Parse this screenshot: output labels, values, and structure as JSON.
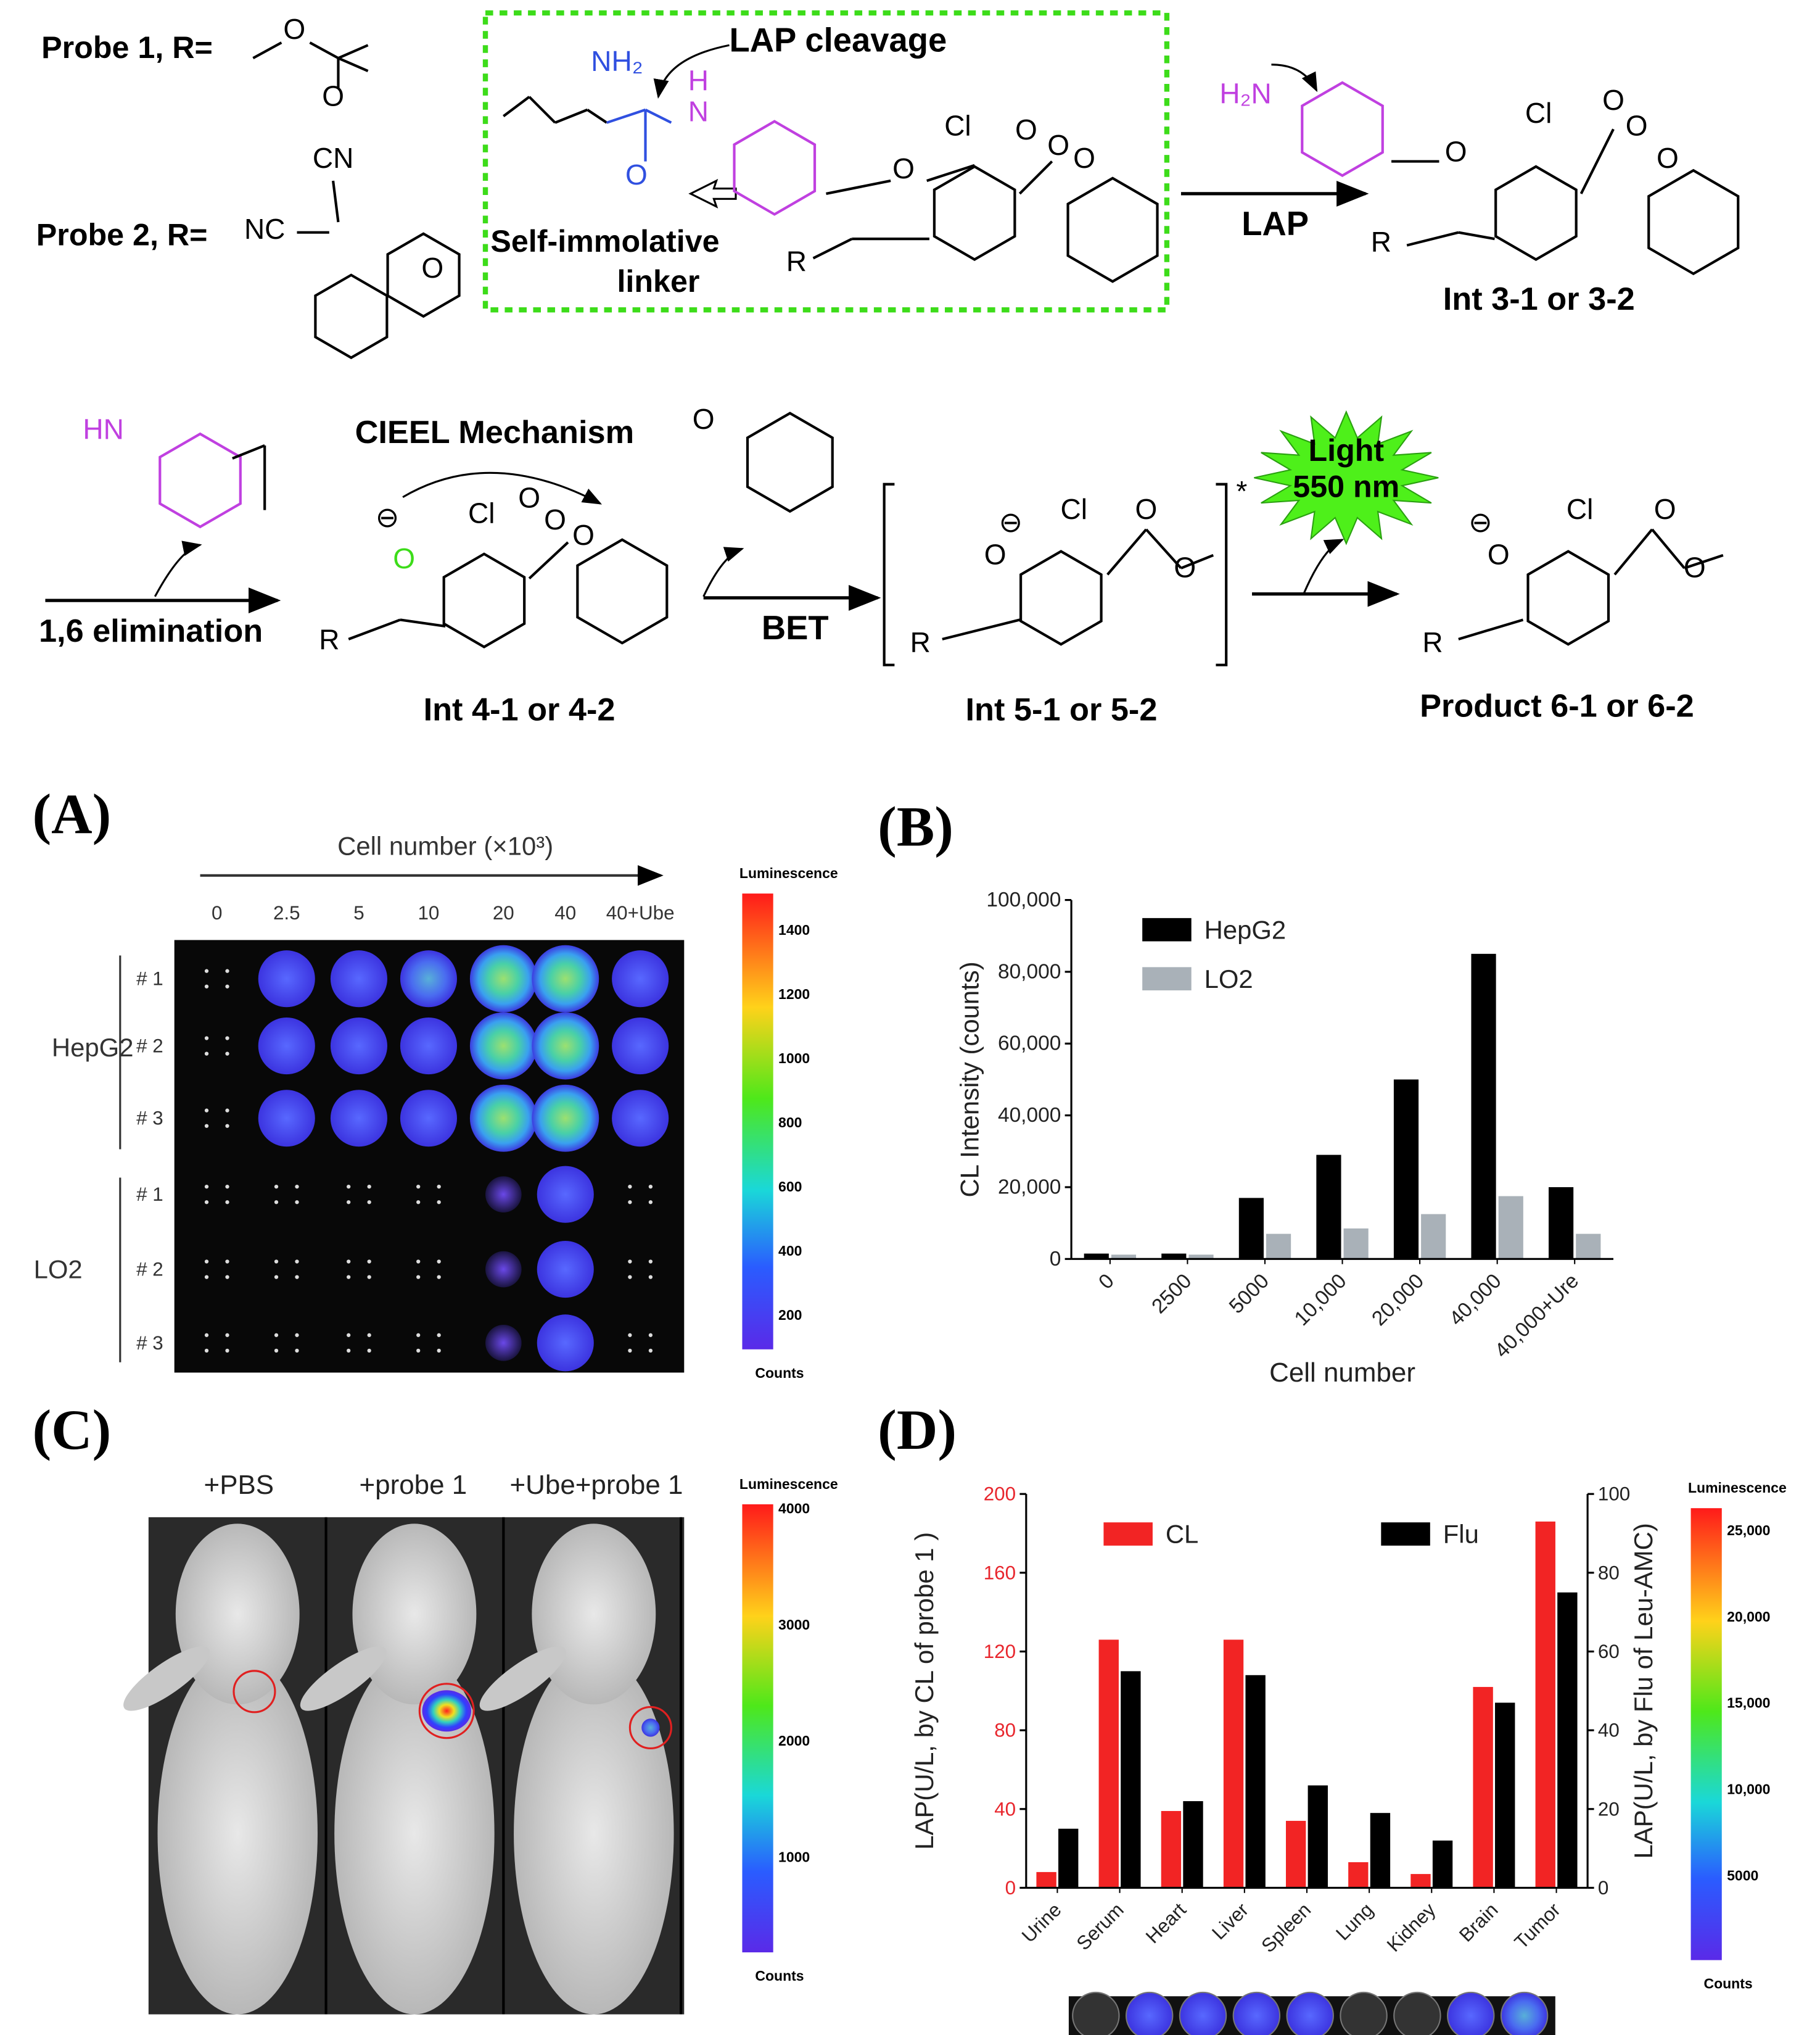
{
  "scheme": {
    "probe1": "Probe 1, R=",
    "probe2": "Probe 2, R=",
    "lap_cleavage": "LAP cleavage",
    "linker": [
      "Self-immolative",
      "linker"
    ],
    "lap": "LAP",
    "int3": "Int 3-1 or 3-2",
    "cieel": "CIEEL Mechanism",
    "elimination": "1,6 elimination",
    "int4": "Int 4-1 or 4-2",
    "bet": "BET",
    "int5": "Int 5-1 or 5-2",
    "light": [
      "Light",
      "550 nm"
    ],
    "product": "Product 6-1 or 6-2",
    "atoms": [
      "O",
      "O",
      "CN",
      "NC",
      "O",
      "NH₂",
      "H",
      "N",
      "O",
      "O",
      "Cl",
      "R",
      "O",
      "O",
      "O",
      "H₂N",
      "O",
      "Cl",
      "R",
      "O",
      "O",
      "O",
      "HN",
      "O",
      "Cl",
      "R",
      "O",
      "O",
      "O",
      "O",
      "O",
      "Cl",
      "O",
      "O",
      "R",
      "*",
      "O",
      "Cl",
      "O",
      "O",
      "R",
      "⊖",
      "⊖",
      "⊖"
    ]
  },
  "panel_labels": [
    "(A)",
    "(B)",
    "(C)",
    "(D)"
  ],
  "panel_a": {
    "axis_title": "Cell number (×10³)",
    "columns": [
      "0",
      "2.5",
      "5",
      "10",
      "20",
      "40",
      "40+Ube"
    ],
    "groups": [
      "HepG2",
      "LO2"
    ],
    "rows": [
      "# 1",
      "# 2",
      "# 3",
      "# 1",
      "# 2",
      "# 3"
    ],
    "colorbar": {
      "title": "Luminescence",
      "ticks": [
        1400,
        1200,
        1000,
        800,
        600,
        400,
        200
      ],
      "unit": "Counts"
    }
  },
  "panel_c": {
    "columns": [
      "+PBS",
      "+probe 1",
      "+Ube+probe 1"
    ],
    "colorbar": {
      "title": "Luminescence",
      "ticks": [
        4000,
        3000,
        2000,
        1000
      ],
      "unit": "Counts"
    }
  },
  "panel_d_colorbar": {
    "title": "Luminescence",
    "ticks": [
      "25,000",
      "20,000",
      "15,000",
      "10,000",
      "5000"
    ],
    "unit": "Counts"
  },
  "chart_data": [
    {
      "type": "bar",
      "ylabel": "CL Intensity (counts)",
      "xlabel": "Cell number",
      "categories": [
        "0",
        "2500",
        "5000",
        "10,000",
        "20,000",
        "40,000",
        "40,000+Ure"
      ],
      "series": [
        {
          "name": "HepG2",
          "color": "#000000",
          "values": [
            1500,
            1500,
            17000,
            29000,
            50000,
            85000,
            20000
          ]
        },
        {
          "name": "LO2",
          "color": "#a9b1b8",
          "values": [
            1200,
            1200,
            7000,
            8500,
            12500,
            17500,
            7000
          ]
        }
      ],
      "ylim": [
        0,
        100000
      ],
      "yticks": [
        0,
        {
          "value": 20000,
          "label": "20,000"
        },
        {
          "value": 40000,
          "label": "40,000"
        },
        {
          "value": 60000,
          "label": "60,000"
        },
        {
          "value": 80000,
          "label": "80,000"
        },
        {
          "value": 100000,
          "label": "100,000"
        }
      ],
      "legend": "upper left"
    },
    {
      "type": "bar",
      "ylabel": "LAP(U/L, by CL of probe 1 )",
      "y2label": "LAP(U/L, by Flu of Leu-AMC)",
      "categories": [
        "Urine",
        "Serum",
        "Heart",
        "Liver",
        "Spleen",
        "Lung",
        "Kidney",
        "Brain",
        "Tumor"
      ],
      "series": [
        {
          "name": "CL",
          "color": "#f22424",
          "values": [
            8,
            126,
            39,
            126,
            34,
            13,
            7,
            102,
            186
          ]
        },
        {
          "name": "Flu",
          "color": "#000000",
          "values": [
            15,
            55,
            22,
            54,
            26,
            19,
            12,
            47,
            75
          ],
          "axis": "y2"
        }
      ],
      "ylim": [
        0,
        200
      ],
      "yticks": [
        0,
        40,
        80,
        120,
        160,
        200
      ],
      "y2lim": [
        0,
        100
      ],
      "y2ticks": [
        0,
        20,
        40,
        60,
        80,
        100
      ],
      "ytick_color": "#e8262d",
      "legend": "top"
    }
  ]
}
